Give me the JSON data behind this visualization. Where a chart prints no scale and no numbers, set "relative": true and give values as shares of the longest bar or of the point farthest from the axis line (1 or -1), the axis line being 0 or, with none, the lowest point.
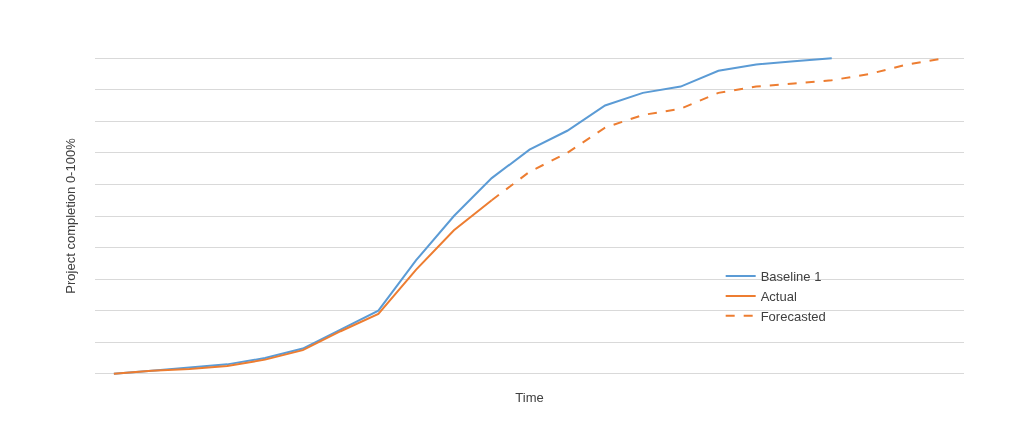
{
  "chart_data": {
    "type": "line",
    "xlabel": "Time",
    "ylabel": "Project completion 0-100%",
    "relative": true,
    "grid": "y",
    "legend": "right",
    "marker": "none",
    "categories": [
      null,
      null,
      null,
      null,
      null,
      null,
      null,
      null,
      null,
      null,
      null,
      null,
      null,
      null,
      null,
      null,
      null,
      null,
      null,
      null,
      null,
      null,
      null
    ],
    "series": [
      {
        "name": "Baseline 1",
        "color": "#5b9bd5",
        "line_style": "solid",
        "values": [
          0,
          0.01,
          0.02,
          0.03,
          0.05,
          0.08,
          0.14,
          0.2,
          0.36,
          0.5,
          0.62,
          0.71,
          0.77,
          0.85,
          0.89,
          0.91,
          0.96,
          0.98,
          0.99,
          1,
          null,
          null,
          null
        ]
      },
      {
        "name": "Actual",
        "color": "#ed7d31",
        "line_style": "solid",
        "values": [
          0,
          0.01,
          0.015,
          0.025,
          0.045,
          0.075,
          0.135,
          0.19,
          0.33,
          0.455,
          0.55,
          null,
          null,
          null,
          null,
          null,
          null,
          null,
          null,
          null,
          null,
          null,
          null
        ]
      },
      {
        "name": "Forecasted",
        "color": "#ed7d31",
        "line_style": "dashed",
        "values": [
          null,
          null,
          null,
          null,
          null,
          null,
          null,
          null,
          null,
          null,
          0.55,
          0.64,
          0.7,
          0.78,
          0.82,
          0.84,
          0.89,
          0.91,
          0.92,
          0.93,
          0.95,
          0.98,
          1
        ]
      }
    ]
  }
}
